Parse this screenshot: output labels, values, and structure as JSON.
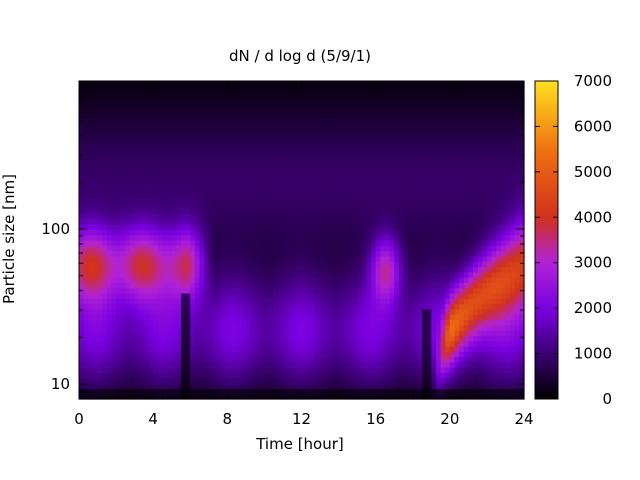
{
  "chart_data": {
    "type": "heatmap",
    "title": "dN / d log d (5/9/1)",
    "xlabel": "Time [hour]",
    "ylabel": "Particle size [nm]",
    "xlim": [
      0,
      24
    ],
    "x_ticks": [
      0,
      4,
      8,
      12,
      16,
      20,
      24
    ],
    "y_scale": "log",
    "ylim": [
      8,
      900
    ],
    "y_ticks": [
      10,
      100
    ],
    "colorbar": {
      "range": [
        0,
        7000
      ],
      "ticks": [
        0,
        1000,
        2000,
        3000,
        4000,
        5000,
        6000,
        7000
      ],
      "colormap": [
        "#000000",
        "#3a0070",
        "#7a00e0",
        "#b022d6",
        "#d0301e",
        "#f07010",
        "#ffe020"
      ]
    },
    "features": [
      {
        "x_range": [
          0,
          5.8
        ],
        "size_peak_nm": 60,
        "max_value": 5200
      },
      {
        "x_range": [
          15.7,
          17.4
        ],
        "size_peak_nm": 55,
        "max_value": 4300
      },
      {
        "x_range": [
          19.5,
          24
        ],
        "size_from_nm": 13,
        "size_to_nm": 60,
        "max_value": 5000
      },
      {
        "x_range": [
          0,
          24
        ],
        "size_range_nm": [
          10,
          40
        ],
        "background_value": 2000
      }
    ]
  }
}
